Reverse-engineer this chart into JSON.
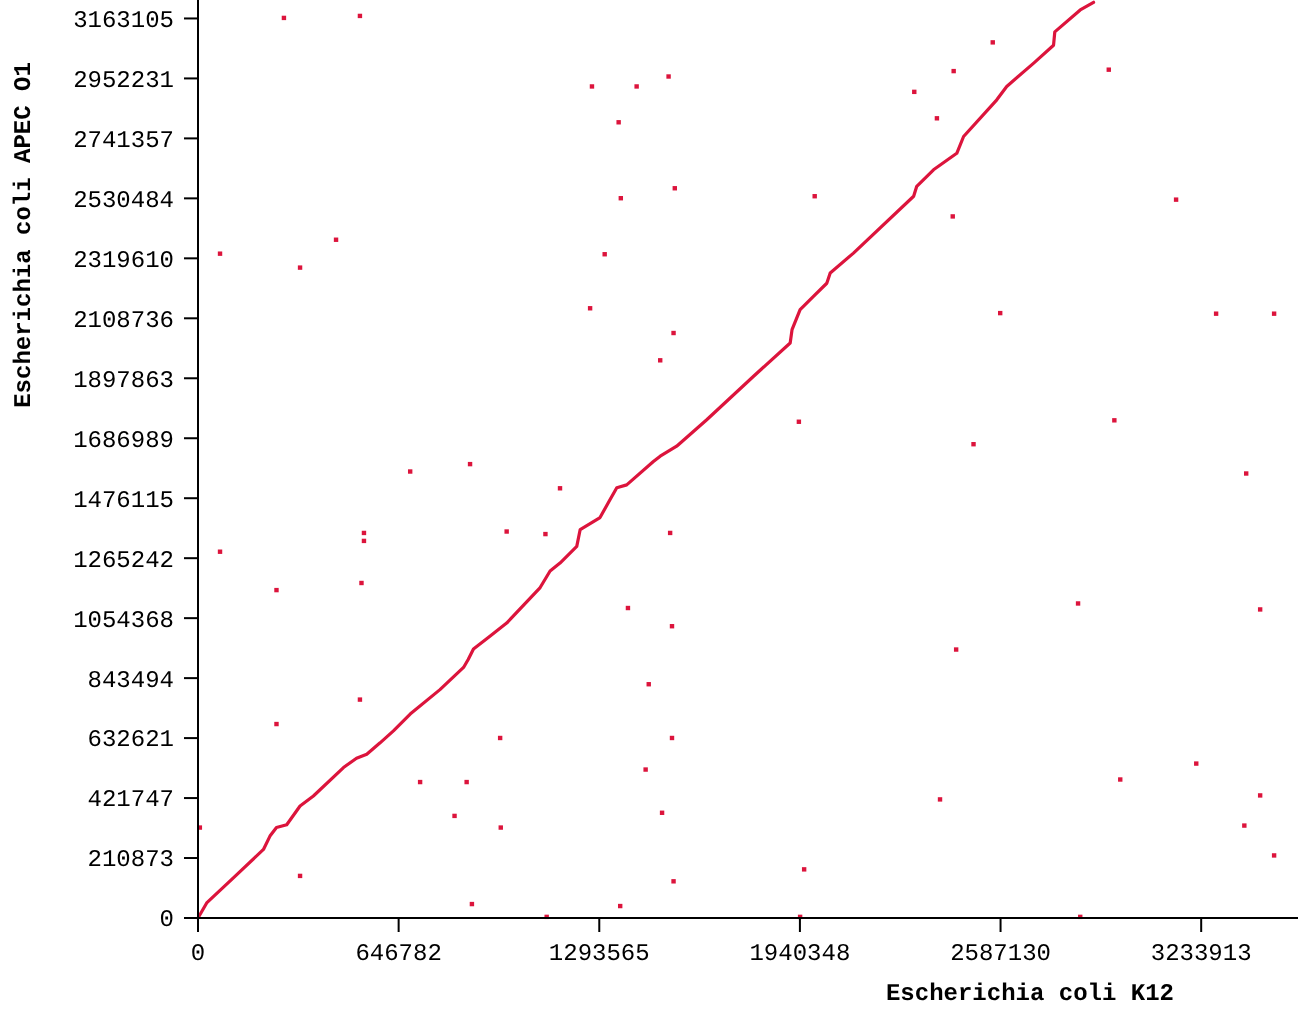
{
  "chart_data": {
    "type": "scatter",
    "xlabel": "Escherichia coli K12",
    "ylabel": "Escherichia coli APEC O1",
    "xlim": [
      0,
      3546000
    ],
    "ylim": [
      0,
      3228000
    ],
    "xticks": [
      0,
      646782,
      1293565,
      1940348,
      2587130,
      3233913
    ],
    "yticks": [
      0,
      210873,
      421747,
      632621,
      843494,
      1054368,
      1265242,
      1476115,
      1686989,
      1897863,
      2108736,
      2319610,
      2530484,
      2741357,
      2952231,
      3163105
    ],
    "grid": false,
    "series": [
      {
        "type": "line",
        "color": "#dc143c",
        "marker": "none",
        "line_style": "solid",
        "x": [
          0,
          28000,
          114000,
          211000,
          232000,
          253000,
          286000,
          329000,
          372000,
          469000,
          511000,
          544000,
          587000,
          630000,
          684000,
          780000,
          856000,
          871000,
          888000,
          941000,
          995000,
          1103000,
          1135000,
          1167000,
          1221000,
          1232000,
          1296000,
          1328000,
          1350000,
          1382000,
          1468000,
          1490000,
          1543000,
          1640000,
          1791000,
          1909000,
          1915000,
          1941000,
          1984000,
          2027000,
          2038000,
          2113000,
          2307000,
          2317000,
          2371000,
          2446000,
          2468000,
          2575000,
          2607000,
          2694000,
          2758000,
          2762000,
          2844000,
          2887000
        ],
        "values": [
          0,
          53000,
          141000,
          241000,
          288000,
          318000,
          328000,
          394000,
          429000,
          529000,
          562000,
          576000,
          616000,
          658000,
          717000,
          803000,
          881000,
          909000,
          946000,
          991000,
          1037000,
          1162000,
          1220000,
          1248000,
          1307000,
          1366000,
          1408000,
          1471000,
          1513000,
          1523000,
          1605000,
          1624000,
          1659000,
          1752000,
          1905000,
          2022000,
          2069000,
          2139000,
          2186000,
          2232000,
          2268000,
          2338000,
          2538000,
          2573000,
          2631000,
          2689000,
          2748000,
          2877000,
          2924000,
          3006000,
          3069000,
          3116000,
          3193000,
          3220000
        ]
      },
      {
        "color": "#dc143c",
        "marker": "square",
        "x": [
          684000,
          877000,
          1167000,
          535000,
          535000,
          995000,
          1120000,
          527000,
          253000,
          1386000,
          1528000,
          1522000,
          1453000,
          522000,
          253000,
          974000,
          1528000,
          716000,
          866000,
          1443000,
          827000,
          976000,
          6000,
          1496000,
          329000,
          883000,
          1361000,
          1533000,
          1124000,
          1270000,
          1414000,
          1517000,
          1356000,
          1363000,
          1537000,
          1988000,
          1311000,
          1264000,
          1533000,
          1490000,
          2309000,
          2382000,
          2436000,
          2562000,
          2936000,
          2433000,
          2586000,
          1937000,
          2954000,
          2500000,
          277000,
          522000,
          71000,
          329000,
          3282000,
          3469000,
          3153000,
          3379000,
          3424000,
          3218000,
          3424000,
          3373000,
          3469000,
          2837000,
          2444000,
          1954000,
          2392000,
          2973000,
          71000,
          445000,
          1941000,
          2844000
        ],
        "values": [
          1570000,
          1596000,
          1511000,
          1354000,
          1326000,
          1359000,
          1350000,
          1178000,
          1153000,
          1090000,
          1026000,
          1354000,
          822000,
          768000,
          682000,
          633000,
          633000,
          478000,
          478000,
          522000,
          359000,
          318000,
          318000,
          370000,
          148000,
          49000,
          42000,
          129000,
          4000,
          2924000,
          2924000,
          2959000,
          2798000,
          2531000,
          2566000,
          2538000,
          2334000,
          2144000,
          2057000,
          1961000,
          2905000,
          2812000,
          2978000,
          3079000,
          2983000,
          2467000,
          2127000,
          1745000,
          1750000,
          1666000,
          3165000,
          3172000,
          2336000,
          2287000,
          2125000,
          2125000,
          2526000,
          1563000,
          1085000,
          543000,
          431000,
          325000,
          220000,
          1106000,
          944000,
          171000,
          417000,
          487000,
          1288000,
          2385000,
          4000,
          4000
        ]
      }
    ]
  }
}
